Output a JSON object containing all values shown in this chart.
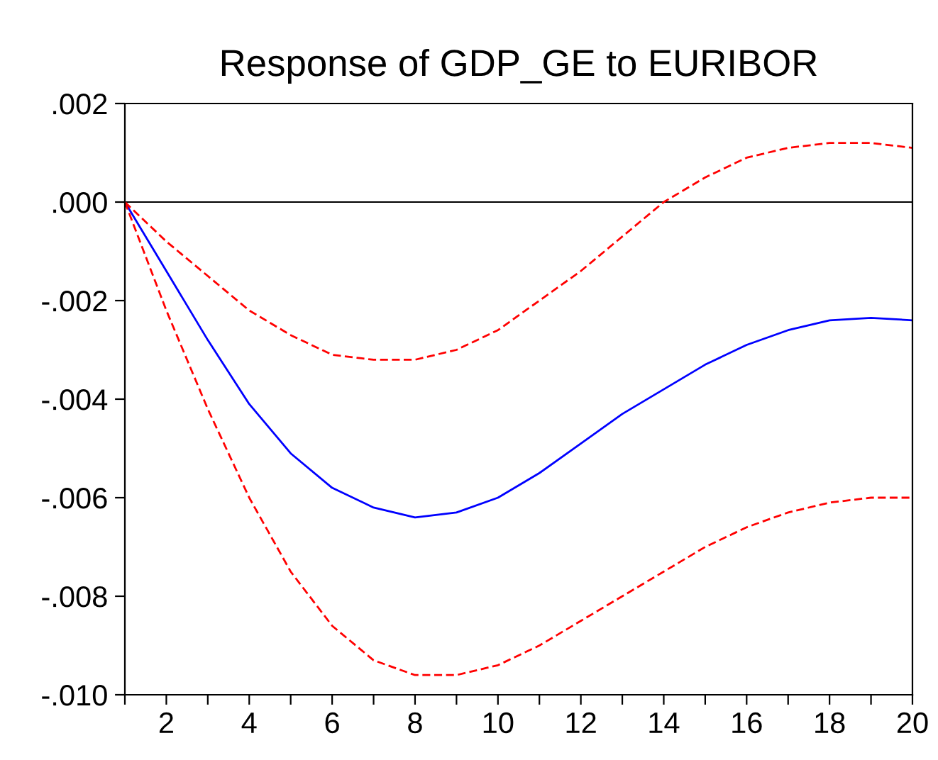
{
  "chart_data": {
    "type": "line",
    "title": "Response of GDP_GE to EURIBOR",
    "x": [
      1,
      2,
      3,
      4,
      5,
      6,
      7,
      8,
      9,
      10,
      11,
      12,
      13,
      14,
      15,
      16,
      17,
      18,
      19,
      20
    ],
    "series": [
      {
        "color": "#0000ff",
        "line_style": "solid",
        "values": [
          0,
          -0.0014,
          -0.0028,
          -0.0041,
          -0.0051,
          -0.0058,
          -0.0062,
          -0.0064,
          -0.0063,
          -0.006,
          -0.0055,
          -0.0049,
          -0.0043,
          -0.0038,
          -0.0033,
          -0.0029,
          -0.0026,
          -0.0024,
          -0.00235,
          -0.0024
        ]
      },
      {
        "color": "#ff0000",
        "line_style": "dashed",
        "values": [
          0,
          -0.0008,
          -0.0015,
          -0.0022,
          -0.0027,
          -0.0031,
          -0.0032,
          -0.0032,
          -0.003,
          -0.0026,
          -0.002,
          -0.0014,
          -0.0007,
          0.0,
          0.0005,
          0.0009,
          0.0011,
          0.0012,
          0.0012,
          0.0011
        ]
      },
      {
        "color": "#ff0000",
        "line_style": "dashed",
        "values": [
          0,
          -0.0022,
          -0.0042,
          -0.006,
          -0.0075,
          -0.0086,
          -0.0093,
          -0.0096,
          -0.0096,
          -0.0094,
          -0.009,
          -0.0085,
          -0.008,
          -0.0075,
          -0.007,
          -0.0066,
          -0.0063,
          -0.0061,
          -0.006,
          -0.006
        ]
      }
    ],
    "xlim": [
      1,
      20
    ],
    "xticks": [
      {
        "value": 1,
        "label": null
      },
      2,
      {
        "value": 3,
        "label": null
      },
      4,
      {
        "value": 5,
        "label": null
      },
      6,
      {
        "value": 7,
        "label": null
      },
      8,
      {
        "value": 9,
        "label": null
      },
      10,
      {
        "value": 11,
        "label": null
      },
      12,
      {
        "value": 13,
        "label": null
      },
      14,
      {
        "value": 15,
        "label": null
      },
      16,
      {
        "value": 17,
        "label": null
      },
      18,
      {
        "value": 19,
        "label": null
      },
      20
    ],
    "ylim": [
      -0.01,
      0.002
    ],
    "yticks": [
      {
        "value": -0.01,
        "label": "-.010"
      },
      {
        "value": -0.008,
        "label": "-.008"
      },
      {
        "value": -0.006,
        "label": "-.006"
      },
      {
        "value": -0.004,
        "label": "-.004"
      },
      {
        "value": -0.002,
        "label": "-.002"
      },
      {
        "value": 0.0,
        "label": ".000"
      },
      {
        "value": 0.002,
        "label": ".002"
      }
    ],
    "ref_lines": [
      {
        "axis": "y",
        "value": 0,
        "color": "#000000",
        "line_style": "solid"
      }
    ],
    "grid": false,
    "legend": false,
    "marker": "none"
  }
}
